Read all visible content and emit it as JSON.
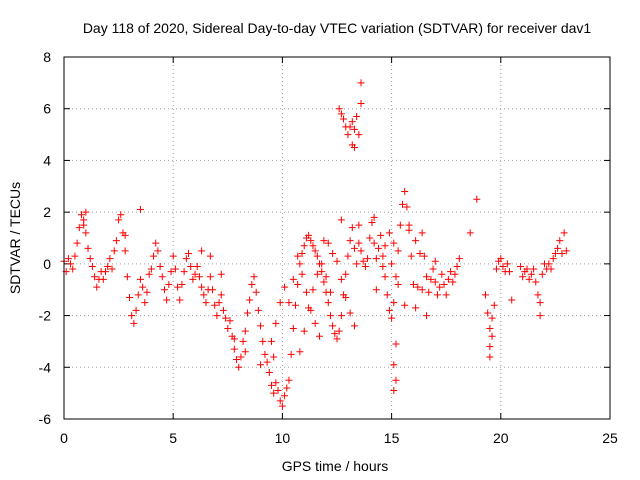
{
  "chart_data": {
    "type": "scatter",
    "title": "Day 118 of 2020, Sidereal Day-to-day VTEC variation (SDTVAR) for receiver dav1",
    "xlabel": "GPS time / hours",
    "ylabel": "SDTVAR / TECUs",
    "xlim": [
      0,
      25
    ],
    "ylim": [
      -6,
      8
    ],
    "grid": true,
    "legend": "none",
    "marker": "+",
    "xticks": [
      {
        "value": 0,
        "label": "0"
      },
      {
        "value": 5,
        "label": "5"
      },
      {
        "value": 10,
        "label": "10"
      },
      {
        "value": 15,
        "label": "15"
      },
      {
        "value": 20,
        "label": "20"
      },
      {
        "value": 25,
        "label": "25"
      }
    ],
    "yticks": [
      {
        "value": -6,
        "label": "-6"
      },
      {
        "value": -4,
        "label": "-4"
      },
      {
        "value": -2,
        "label": "-2"
      },
      {
        "value": 0,
        "label": "0"
      },
      {
        "value": 2,
        "label": "2"
      },
      {
        "value": 4,
        "label": "4"
      },
      {
        "value": 6,
        "label": "6"
      },
      {
        "value": 8,
        "label": "8"
      }
    ],
    "series": [
      {
        "name": "SDTVAR",
        "color": "#ff0000",
        "points": [
          [
            0.0,
            0.1
          ],
          [
            0.1,
            -0.3
          ],
          [
            0.2,
            0.2
          ],
          [
            0.3,
            0.0
          ],
          [
            0.4,
            -0.2
          ],
          [
            0.5,
            0.3
          ],
          [
            0.6,
            0.8
          ],
          [
            0.7,
            1.4
          ],
          [
            0.8,
            1.9
          ],
          [
            0.9,
            1.5
          ],
          [
            1.0,
            1.2
          ],
          [
            1.1,
            0.6
          ],
          [
            1.2,
            0.2
          ],
          [
            1.3,
            -0.1
          ],
          [
            1.4,
            -0.5
          ],
          [
            1.5,
            -0.9
          ],
          [
            1.6,
            -0.6
          ],
          [
            1.7,
            -0.3
          ],
          [
            1.8,
            -0.6
          ],
          [
            1.9,
            -0.3
          ],
          [
            2.0,
            -0.1
          ],
          [
            2.1,
            0.2
          ],
          [
            2.2,
            -0.2
          ],
          [
            2.3,
            0.5
          ],
          [
            2.4,
            0.9
          ],
          [
            2.5,
            1.7
          ],
          [
            2.6,
            1.9
          ],
          [
            2.7,
            1.2
          ],
          [
            2.8,
            0.5
          ],
          [
            2.9,
            -0.5
          ],
          [
            3.0,
            -1.3
          ],
          [
            3.1,
            -2.0
          ],
          [
            3.2,
            -2.3
          ],
          [
            3.3,
            -1.8
          ],
          [
            3.4,
            -1.2
          ],
          [
            3.5,
            -0.6
          ],
          [
            3.6,
            -0.9
          ],
          [
            3.7,
            -1.5
          ],
          [
            3.8,
            -1.1
          ],
          [
            3.9,
            -0.4
          ],
          [
            4.0,
            -0.2
          ],
          [
            4.1,
            0.3
          ],
          [
            4.2,
            0.8
          ],
          [
            4.3,
            0.5
          ],
          [
            4.4,
            -0.1
          ],
          [
            4.5,
            -0.5
          ],
          [
            4.6,
            -1.0
          ],
          [
            4.7,
            -1.4
          ],
          [
            4.8,
            -0.8
          ],
          [
            4.9,
            -0.3
          ],
          [
            5.0,
            0.3
          ],
          [
            5.1,
            -0.2
          ],
          [
            5.2,
            -0.9
          ],
          [
            5.3,
            -1.4
          ],
          [
            5.4,
            -0.8
          ],
          [
            5.5,
            -0.3
          ],
          [
            5.6,
            0.2
          ],
          [
            5.7,
            0.4
          ],
          [
            5.8,
            -0.1
          ],
          [
            5.9,
            -0.6
          ],
          [
            6.0,
            -0.4
          ],
          [
            6.1,
            -0.1
          ],
          [
            6.2,
            -0.5
          ],
          [
            6.3,
            -0.9
          ],
          [
            6.4,
            -1.2
          ],
          [
            6.5,
            -1.5
          ],
          [
            6.6,
            -1.0
          ],
          [
            6.7,
            -0.5
          ],
          [
            6.8,
            -1.0
          ],
          [
            6.9,
            -1.6
          ],
          [
            7.0,
            -2.0
          ],
          [
            7.1,
            -1.5
          ],
          [
            7.2,
            -1.2
          ],
          [
            7.3,
            -1.8
          ],
          [
            7.4,
            -2.1
          ],
          [
            7.5,
            -2.5
          ],
          [
            7.6,
            -2.2
          ],
          [
            7.7,
            -2.8
          ],
          [
            7.8,
            -3.3
          ],
          [
            7.9,
            -3.7
          ],
          [
            8.0,
            -4.0
          ],
          [
            8.1,
            -3.6
          ],
          [
            8.2,
            -3.0
          ],
          [
            8.3,
            -2.6
          ],
          [
            8.4,
            -1.9
          ],
          [
            8.5,
            -1.4
          ],
          [
            8.6,
            -0.8
          ],
          [
            8.7,
            -0.5
          ],
          [
            8.8,
            -1.1
          ],
          [
            8.9,
            -1.8
          ],
          [
            9.0,
            -2.4
          ],
          [
            9.1,
            -3.0
          ],
          [
            9.2,
            -3.5
          ],
          [
            9.3,
            -3.8
          ],
          [
            9.4,
            -4.2
          ],
          [
            9.5,
            -4.7
          ],
          [
            9.6,
            -5.0
          ],
          [
            9.7,
            -4.6
          ],
          [
            9.8,
            -4.9
          ],
          [
            9.9,
            -5.3
          ],
          [
            10.0,
            -5.5
          ],
          [
            10.1,
            -5.1
          ],
          [
            10.2,
            -4.8
          ],
          [
            10.3,
            -4.5
          ],
          [
            10.4,
            -3.5
          ],
          [
            10.5,
            -2.5
          ],
          [
            10.6,
            -1.6
          ],
          [
            10.7,
            -0.8
          ],
          [
            10.8,
            0.0
          ],
          [
            10.9,
            0.4
          ],
          [
            11.0,
            0.7
          ],
          [
            11.1,
            1.0
          ],
          [
            11.2,
            1.1
          ],
          [
            11.3,
            0.9
          ],
          [
            11.4,
            0.7
          ],
          [
            11.5,
            0.5
          ],
          [
            11.6,
            0.3
          ],
          [
            11.7,
            0.0
          ],
          [
            11.8,
            -0.3
          ],
          [
            11.9,
            -0.7
          ],
          [
            12.0,
            -1.1
          ],
          [
            12.1,
            -1.5
          ],
          [
            12.2,
            -2.0
          ],
          [
            12.3,
            -2.4
          ],
          [
            12.4,
            -2.7
          ],
          [
            12.5,
            -2.9
          ],
          [
            12.6,
            -2.6
          ],
          [
            12.7,
            -2.0
          ],
          [
            12.8,
            -1.2
          ],
          [
            12.9,
            -0.4
          ],
          [
            13.0,
            0.3
          ],
          [
            13.1,
            0.9
          ],
          [
            13.2,
            1.4
          ],
          [
            13.3,
            0.6
          ],
          [
            13.4,
            0.0
          ],
          [
            13.5,
            0.8
          ],
          [
            13.6,
            0.5
          ],
          [
            13.7,
            0.1
          ],
          [
            13.8,
            -0.1
          ],
          [
            13.9,
            0.2
          ],
          [
            14.0,
            1.0
          ],
          [
            14.1,
            1.6
          ],
          [
            14.2,
            0.8
          ],
          [
            14.3,
            0.2
          ],
          [
            14.4,
            0.6
          ],
          [
            14.5,
            1.1
          ],
          [
            14.6,
            0.3
          ],
          [
            14.7,
            -0.5
          ],
          [
            14.8,
            -1.2
          ],
          [
            14.9,
            -1.8
          ],
          [
            15.0,
            -2.1
          ],
          [
            15.1,
            -1.5
          ],
          [
            15.2,
            -0.5
          ],
          [
            15.3,
            0.5
          ],
          [
            15.4,
            1.5
          ],
          [
            15.5,
            2.3
          ],
          [
            15.6,
            2.8
          ],
          [
            15.7,
            2.2
          ],
          [
            15.8,
            1.5
          ],
          [
            15.9,
            0.3
          ],
          [
            16.0,
            -0.8
          ],
          [
            16.1,
            -1.7
          ],
          [
            16.2,
            -0.9
          ],
          [
            16.3,
            0.4
          ],
          [
            16.4,
            1.2
          ],
          [
            16.5,
            0.3
          ],
          [
            16.6,
            -0.5
          ],
          [
            16.7,
            -1.1
          ],
          [
            16.8,
            -0.6
          ],
          [
            16.9,
            -0.2
          ],
          [
            17.0,
            -0.7
          ],
          [
            17.1,
            -1.2
          ],
          [
            17.2,
            -0.9
          ],
          [
            17.3,
            -0.4
          ],
          [
            17.4,
            -0.8
          ],
          [
            17.5,
            -1.2
          ],
          [
            17.6,
            -0.6
          ],
          [
            17.7,
            -0.3
          ],
          [
            17.8,
            -0.7
          ],
          [
            17.9,
            -0.4
          ],
          [
            18.0,
            -0.1
          ],
          [
            18.1,
            0.2
          ],
          [
            18.6,
            1.2
          ],
          [
            18.9,
            2.5
          ],
          [
            19.3,
            -1.2
          ],
          [
            19.4,
            -1.9
          ],
          [
            19.5,
            -2.5
          ],
          [
            19.6,
            -2.8
          ],
          [
            19.7,
            -1.6
          ],
          [
            19.8,
            -0.2
          ],
          [
            19.9,
            0.1
          ],
          [
            20.0,
            0.2
          ],
          [
            20.1,
            -0.1
          ],
          [
            20.2,
            -0.3
          ],
          [
            20.3,
            0.0
          ],
          [
            20.4,
            -0.3
          ],
          [
            20.9,
            -0.1
          ],
          [
            21.0,
            -0.5
          ],
          [
            21.1,
            -0.3
          ],
          [
            21.2,
            -0.2
          ],
          [
            21.3,
            -0.6
          ],
          [
            21.4,
            -0.4
          ],
          [
            21.5,
            -0.2
          ],
          [
            21.6,
            -0.7
          ],
          [
            21.7,
            -1.2
          ],
          [
            21.8,
            -1.5
          ],
          [
            21.9,
            -0.4
          ],
          [
            22.0,
            0.0
          ],
          [
            22.1,
            -0.2
          ],
          [
            22.2,
            0.0
          ],
          [
            22.3,
            -0.2
          ],
          [
            22.4,
            0.2
          ],
          [
            22.5,
            0.4
          ],
          [
            22.6,
            0.6
          ],
          [
            22.7,
            0.9
          ],
          [
            22.8,
            0.4
          ],
          [
            22.9,
            1.2
          ],
          [
            23.0,
            0.5
          ],
          [
            12.6,
            6.0
          ],
          [
            12.7,
            5.8
          ],
          [
            12.8,
            5.6
          ],
          [
            12.9,
            5.3
          ],
          [
            13.0,
            5.0
          ],
          [
            13.1,
            5.3
          ],
          [
            13.2,
            5.5
          ],
          [
            13.3,
            5.2
          ],
          [
            13.4,
            5.7
          ],
          [
            13.5,
            5.0
          ],
          [
            13.6,
            6.2
          ],
          [
            13.6,
            7.0
          ],
          [
            13.2,
            4.6
          ],
          [
            13.3,
            4.5
          ],
          [
            10.3,
            -1.5
          ],
          [
            10.5,
            -0.6
          ],
          [
            10.7,
            0.3
          ],
          [
            10.9,
            -0.4
          ],
          [
            11.1,
            -1.1
          ],
          [
            11.3,
            -1.8
          ],
          [
            11.5,
            -2.3
          ],
          [
            11.7,
            -2.8
          ],
          [
            10.8,
            -3.4
          ],
          [
            11.0,
            -2.6
          ],
          [
            11.2,
            -1.7
          ],
          [
            11.4,
            -1.0
          ],
          [
            11.6,
            -0.4
          ],
          [
            11.8,
            0.0
          ],
          [
            12.0,
            -0.5
          ],
          [
            12.2,
            -1.1
          ],
          [
            11.9,
            0.9
          ],
          [
            12.1,
            0.8
          ],
          [
            12.3,
            0.4
          ],
          [
            12.5,
            0.1
          ],
          [
            12.7,
            -0.6
          ],
          [
            12.9,
            -1.3
          ],
          [
            13.1,
            -1.9
          ],
          [
            13.3,
            -2.4
          ],
          [
            9.5,
            -3.0
          ],
          [
            9.7,
            -2.3
          ],
          [
            9.9,
            -1.5
          ],
          [
            10.1,
            -0.9
          ],
          [
            6.3,
            0.5
          ],
          [
            6.7,
            0.3
          ],
          [
            7.2,
            -0.4
          ],
          [
            7.8,
            -2.9
          ],
          [
            8.3,
            -3.4
          ],
          [
            9.0,
            -3.9
          ],
          [
            9.6,
            -3.6
          ],
          [
            15.1,
            -3.9
          ],
          [
            15.2,
            -4.5
          ],
          [
            15.1,
            -4.9
          ],
          [
            15.2,
            -3.1
          ],
          [
            14.3,
            -1.0
          ],
          [
            14.6,
            -0.1
          ],
          [
            15.0,
            0.0
          ],
          [
            15.3,
            -0.8
          ],
          [
            15.6,
            -1.6
          ],
          [
            16.4,
            -1.0
          ],
          [
            16.6,
            -2.0
          ],
          [
            17.0,
            0.1
          ],
          [
            14.7,
            0.7
          ],
          [
            14.9,
            1.2
          ],
          [
            15.1,
            0.8
          ],
          [
            15.8,
            1.3
          ],
          [
            16.1,
            0.9
          ],
          [
            19.5,
            -3.2
          ],
          [
            19.5,
            -3.6
          ],
          [
            19.6,
            -2.1
          ],
          [
            3.5,
            2.1
          ],
          [
            2.8,
            1.1
          ],
          [
            1.0,
            2.0
          ],
          [
            0.9,
            1.7
          ],
          [
            21.8,
            -2.0
          ],
          [
            20.5,
            -1.4
          ],
          [
            13.5,
            1.5
          ],
          [
            14.2,
            1.8
          ],
          [
            12.7,
            1.7
          ]
        ]
      }
    ]
  }
}
